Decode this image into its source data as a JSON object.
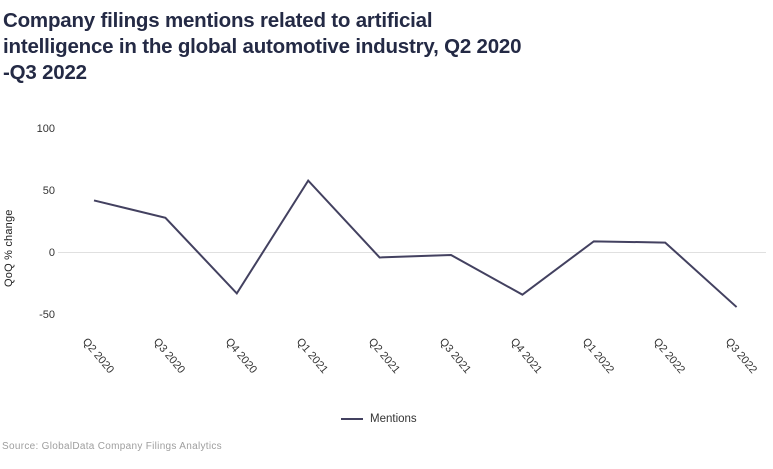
{
  "title": {
    "lines": [
      "Company filings mentions related to artificial",
      "intelligence in the global automotive industry, Q2 2020",
      "-Q3 2022"
    ]
  },
  "source": "Source: GlobalData Company Filings Analytics",
  "colors": {
    "line": "#434160",
    "title_text": "#242a45",
    "tick_text": "#333333",
    "gridline": "#e0e0e0",
    "source_text": "#9e9e9e"
  },
  "chart_data": {
    "type": "line",
    "title": "Company filings mentions related to artificial intelligence in the global automotive industry, Q2 2020 -Q3 2022",
    "categories": [
      "Q2 2020",
      "Q3 2020",
      "Q4 2020",
      "Q1 2021",
      "Q2 2021",
      "Q3 2021",
      "Q4 2021",
      "Q1 2022",
      "Q2 2022",
      "Q3 2022"
    ],
    "series": [
      {
        "name": "Mentions",
        "values": [
          42,
          28,
          -33,
          58,
          -4,
          -2,
          -34,
          9,
          8,
          -44
        ]
      }
    ],
    "ylabel": "QoQ % change",
    "xlabel": "",
    "yticks": [
      100,
      50,
      0,
      -50
    ],
    "ylim": [
      -60,
      110
    ],
    "grid": "horizontal line at 0 only",
    "legend_position": "bottom-center"
  }
}
